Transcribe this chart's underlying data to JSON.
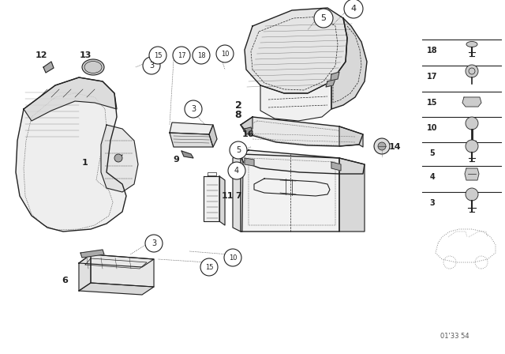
{
  "bg_color": "#ffffff",
  "fig_width": 6.4,
  "fig_height": 4.48,
  "dpi": 100,
  "line_color": "#222222",
  "watermark": "01'33 54"
}
